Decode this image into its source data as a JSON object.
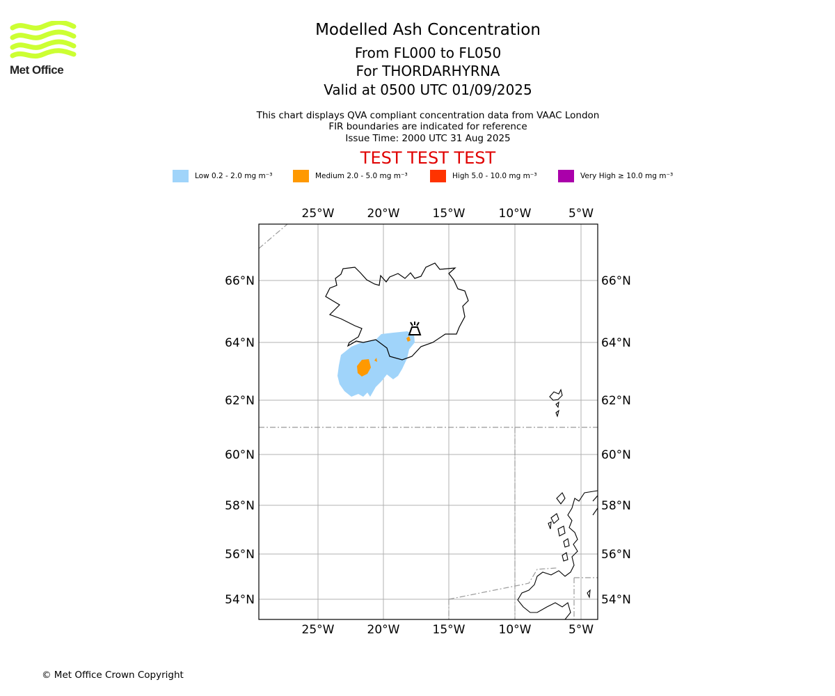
{
  "brand": {
    "logo_text": "Met Office",
    "logo_color": "#ccff33"
  },
  "header": {
    "title": "Modelled Ash Concentration",
    "levels": "From FL000 to FL050",
    "volcano": "For THORDARHYRNA",
    "valid": "Valid at 0500 UTC 01/09/2025",
    "note1": "This chart displays QVA compliant concentration data from VAAC London",
    "note2": "FIR boundaries are indicated for reference",
    "issue": "Issue Time: 2000 UTC 31 Aug 2025",
    "test_banner": "TEST TEST TEST",
    "test_color": "#e00000"
  },
  "legend": [
    {
      "label": "Low 0.2 - 2.0 mg m⁻³",
      "color": "#a0d4fa"
    },
    {
      "label": "Medium 2.0 - 5.0 mg m⁻³",
      "color": "#ff9900"
    },
    {
      "label": "High 5.0 - 10.0 mg m⁻³",
      "color": "#ff3300"
    },
    {
      "label": "Very High ≥ 10.0 mg m⁻³",
      "color": "#aa00aa"
    }
  ],
  "map": {
    "lon_ticks": [
      "25°W",
      "20°W",
      "15°W",
      "10°W",
      "5°W"
    ],
    "lat_ticks": [
      "66°N",
      "64°N",
      "62°N",
      "60°N",
      "58°N",
      "56°N",
      "54°N"
    ],
    "volcano_symbol": "volcano-icon"
  },
  "footer": {
    "copyright": "© Met Office Crown Copyright"
  }
}
